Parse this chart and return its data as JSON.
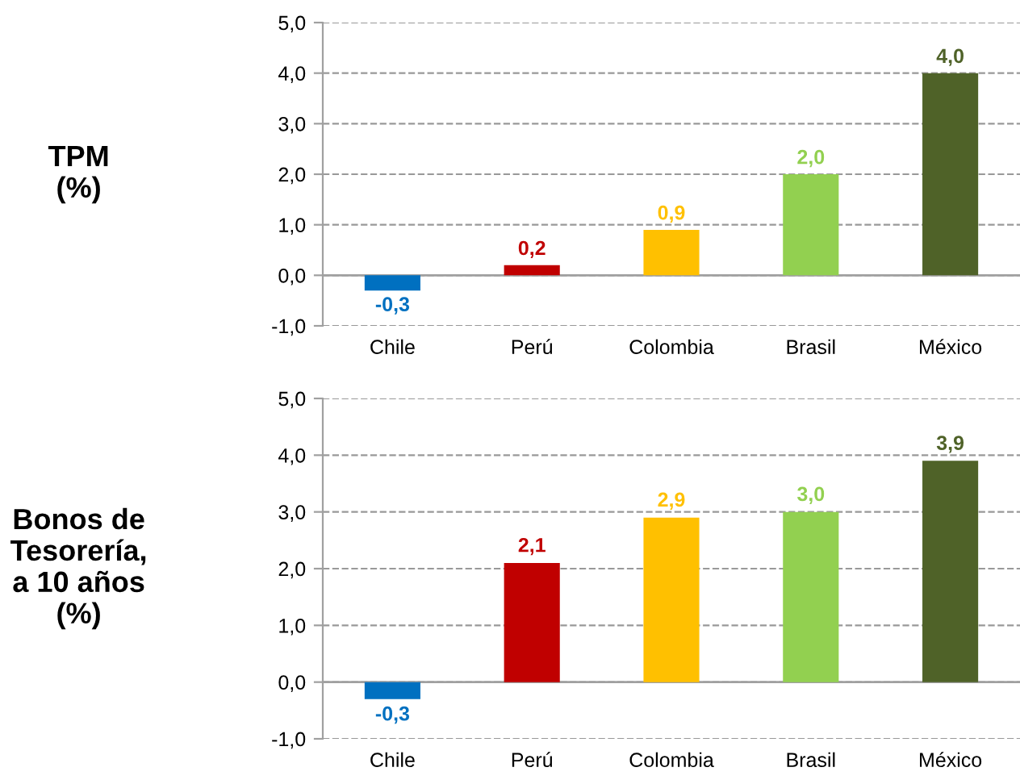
{
  "chart_data": [
    {
      "type": "bar",
      "ylabel": "TPM\n(%)",
      "categories": [
        "Chile",
        "Perú",
        "Colombia",
        "Brasil",
        "México"
      ],
      "values": [
        -0.3,
        0.2,
        0.9,
        2.0,
        4.0
      ],
      "colors": [
        "#0070c0",
        "#c00000",
        "#ffc000",
        "#92d050",
        "#4f6228"
      ],
      "value_labels": [
        "-0,3",
        "0,2",
        "0,9",
        "2,0",
        "4,0"
      ],
      "ylim": [
        -1,
        5
      ],
      "yticks": [
        {
          "value": -1,
          "label": "-1,0"
        },
        {
          "value": 0,
          "label": "0,0"
        },
        {
          "value": 1,
          "label": "1,0"
        },
        {
          "value": 2,
          "label": "2,0"
        },
        {
          "value": 3,
          "label": "3,0"
        },
        {
          "value": 4,
          "label": "4,0"
        },
        {
          "value": 5,
          "label": "5,0"
        }
      ],
      "grid": "y",
      "legend": false
    },
    {
      "type": "bar",
      "ylabel": "Bonos de\nTesorería,\na 10 años\n(%)",
      "categories": [
        "Chile",
        "Perú",
        "Colombia",
        "Brasil",
        "México"
      ],
      "values": [
        -0.3,
        2.1,
        2.9,
        3.0,
        3.9
      ],
      "colors": [
        "#0070c0",
        "#c00000",
        "#ffc000",
        "#92d050",
        "#4f6228"
      ],
      "value_labels": [
        "-0,3",
        "2,1",
        "2,9",
        "3,0",
        "3,9"
      ],
      "ylim": [
        -1,
        5
      ],
      "yticks": [
        {
          "value": -1,
          "label": "-1,0"
        },
        {
          "value": 0,
          "label": "0,0"
        },
        {
          "value": 1,
          "label": "1,0"
        },
        {
          "value": 2,
          "label": "2,0"
        },
        {
          "value": 3,
          "label": "3,0"
        },
        {
          "value": 4,
          "label": "4,0"
        },
        {
          "value": 5,
          "label": "5,0"
        }
      ],
      "grid": "y",
      "legend": false
    }
  ]
}
